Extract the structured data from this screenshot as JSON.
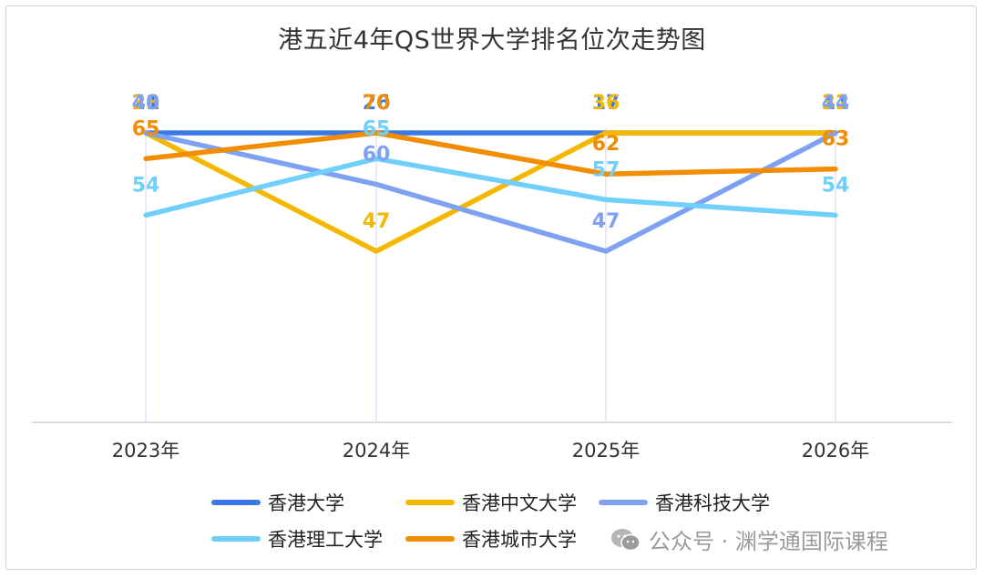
{
  "chart_data": {
    "type": "line",
    "title": "港五近4年QS世界大学排名位次走势图",
    "categories": [
      "2023年",
      "2024年",
      "2025年",
      "2026年"
    ],
    "xlabel": "",
    "ylabel": "",
    "y_inverted": true,
    "grid": false,
    "legend_position": "bottom",
    "series": [
      {
        "name": "香港大学",
        "values": [
          21,
          26,
          17,
          11
        ],
        "color": "#3b78e7"
      },
      {
        "name": "香港中文大学",
        "values": [
          38,
          47,
          36,
          32
        ],
        "color": "#f5b800"
      },
      {
        "name": "香港科技大学",
        "values": [
          40,
          60,
          47,
          44
        ],
        "color": "#7ea1f2"
      },
      {
        "name": "香港理工大学",
        "values": [
          54,
          65,
          57,
          54
        ],
        "color": "#71d0fb"
      },
      {
        "name": "香港城市大学",
        "values": [
          65,
          70,
          62,
          63
        ],
        "color": "#f28c00"
      }
    ]
  },
  "watermark": {
    "icon": "wechat-icon",
    "text": "公众号 · 渊学通国际课程"
  }
}
